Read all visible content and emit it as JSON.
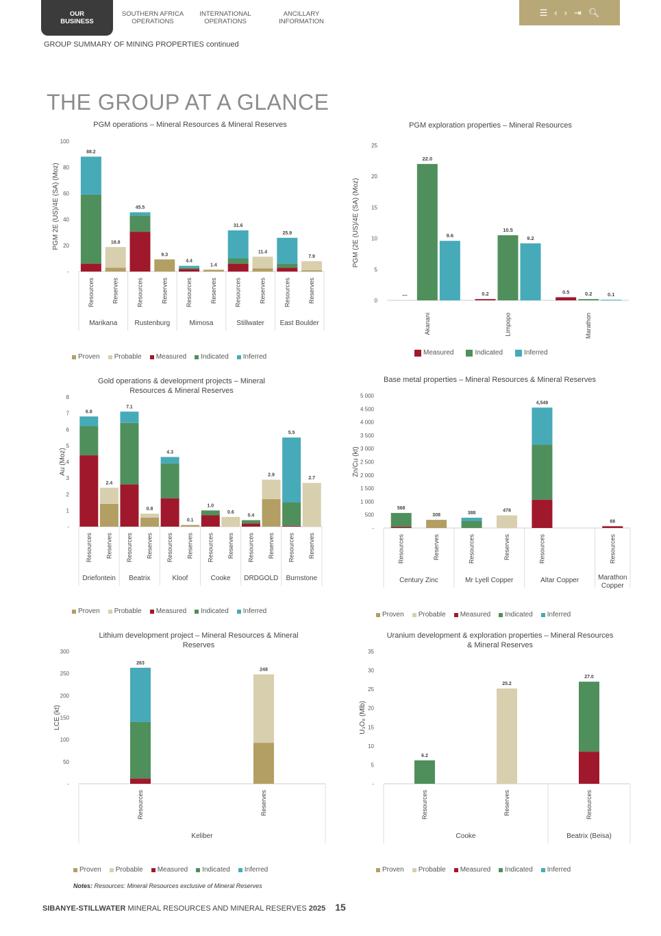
{
  "nav": {
    "tabs": [
      "OUR\nBUSINESS",
      "SOUTHERN AFRICA\nOPERATIONS",
      "INTERNATIONAL\nOPERATIONS",
      "ANCILLARY\nINFORMATION"
    ],
    "active_tab": 0,
    "icons": [
      "menu-icon",
      "chevron-left-icon",
      "chevron-right-icon",
      "exit-icon",
      "search-icon"
    ]
  },
  "section_label": "GROUP SUMMARY OF MINING PROPERTIES",
  "section_suffix": "continued",
  "page_title": "THE GROUP AT A GLANCE",
  "colors": {
    "proven": "#b39e63",
    "probable": "#d8cfae",
    "measured": "#a0182b",
    "indicated": "#4f8f5c",
    "inferred": "#46aab9",
    "nav": "#b8a877",
    "tab": "#3b3b3b"
  },
  "legend5": [
    {
      "key": "proven",
      "label": "Proven"
    },
    {
      "key": "probable",
      "label": "Probable"
    },
    {
      "key": "measured",
      "label": "Measured"
    },
    {
      "key": "indicated",
      "label": "Indicated"
    },
    {
      "key": "inferred",
      "label": "Inferred"
    }
  ],
  "legend3": [
    {
      "key": "measured",
      "label": "Measured"
    },
    {
      "key": "indicated",
      "label": "Indicated"
    },
    {
      "key": "inferred",
      "label": "Inferred"
    }
  ],
  "chart_data": [
    {
      "id": "c1",
      "type": "bar",
      "stacked": true,
      "title": "PGM operations – Mineral Resources & Mineral Reserves",
      "ylabel": "PGM 2E (US)/4E (SA) (Moz)",
      "ylim": [
        0,
        100
      ],
      "yticks": [
        0,
        20,
        40,
        60,
        80,
        100
      ],
      "ytick_labels": [
        "-",
        "20",
        "40",
        "60",
        "80",
        "100"
      ],
      "groups": [
        {
          "name": "Marikana",
          "bars": [
            {
              "label": "Resources",
              "total": "88.2",
              "segments": {
                "measured": 6,
                "indicated": 53,
                "inferred": 29.2
              }
            },
            {
              "label": "Reserves",
              "total": "18.8",
              "segments": {
                "proven": 3,
                "probable": 15.8
              }
            }
          ]
        },
        {
          "name": "Rustenburg",
          "bars": [
            {
              "label": "Resources",
              "total": "45.5",
              "segments": {
                "measured": 30.5,
                "indicated": 12.5,
                "inferred": 2.5
              }
            },
            {
              "label": "Reserves",
              "total": "9.3",
              "segments": {
                "proven": 9.3
              }
            }
          ]
        },
        {
          "name": "Mimosa",
          "bars": [
            {
              "label": "Resources",
              "total": "4.4",
              "segments": {
                "measured": 2,
                "indicated": 0.8,
                "inferred": 1.6
              }
            },
            {
              "label": "Reserves",
              "total": "1.4",
              "segments": {
                "proven": 1.4
              }
            }
          ]
        },
        {
          "name": "Stillwater",
          "bars": [
            {
              "label": "Resources",
              "total": "31.6",
              "segments": {
                "measured": 6,
                "indicated": 4,
                "inferred": 21.6
              }
            },
            {
              "label": "Reserves",
              "total": "11.4",
              "segments": {
                "proven": 2.5,
                "probable": 8.9
              }
            }
          ]
        },
        {
          "name": "East Boulder",
          "bars": [
            {
              "label": "Resources",
              "total": "25.9",
              "segments": {
                "measured": 3,
                "indicated": 3,
                "inferred": 19.9
              }
            },
            {
              "label": "Reserves",
              "total": "7.9",
              "segments": {
                "proven": 1,
                "probable": 6.9
              }
            }
          ]
        }
      ]
    },
    {
      "id": "c2",
      "type": "bar",
      "stacked": false,
      "title": "PGM exploration properties – Mineral Resources",
      "ylabel": "PGM (2E (US)/4E (SA) (Moz)",
      "ylim": [
        0,
        25
      ],
      "yticks": [
        0,
        5,
        10,
        15,
        20,
        25
      ],
      "ytick_labels": [
        "0",
        "5",
        "10",
        "15",
        "20",
        "25"
      ],
      "groups": [
        {
          "name": "Akanani",
          "bars": [
            {
              "key": "measured",
              "value": 0,
              "label": "—"
            },
            {
              "key": "indicated",
              "value": 22.0,
              "label": "22.0"
            },
            {
              "key": "inferred",
              "value": 9.6,
              "label": "9.6"
            }
          ]
        },
        {
          "name": "Limpopo",
          "bars": [
            {
              "key": "measured",
              "value": 0.2,
              "label": "0.2"
            },
            {
              "key": "indicated",
              "value": 10.5,
              "label": "10.5"
            },
            {
              "key": "inferred",
              "value": 9.2,
              "label": "9.2"
            }
          ]
        },
        {
          "name": "Marathon",
          "bars": [
            {
              "key": "measured",
              "value": 0.5,
              "label": "0.5"
            },
            {
              "key": "indicated",
              "value": 0.2,
              "label": "0.2"
            },
            {
              "key": "inferred",
              "value": 0.1,
              "label": "0.1"
            }
          ]
        }
      ]
    },
    {
      "id": "c3",
      "type": "bar",
      "stacked": true,
      "title": "Gold operations & development projects – Mineral Resources & Mineral Reserves",
      "ylabel": "Au (Moz)",
      "ylim": [
        0,
        8
      ],
      "yticks": [
        0,
        1,
        2,
        3,
        4,
        5,
        6,
        7,
        8
      ],
      "ytick_labels": [
        "-",
        "1",
        "2",
        "3",
        "4",
        "5",
        "6",
        "7",
        "8"
      ],
      "groups": [
        {
          "name": "Driefontein",
          "bars": [
            {
              "label": "Resources",
              "total": "6.8",
              "segments": {
                "measured": 4.4,
                "indicated": 1.8,
                "inferred": 0.6
              }
            },
            {
              "label": "Reserves",
              "total": "2.4",
              "segments": {
                "proven": 1.4,
                "probable": 1.0
              }
            }
          ]
        },
        {
          "name": "Beatrix",
          "bars": [
            {
              "label": "Resources",
              "total": "7.1",
              "segments": {
                "measured": 2.6,
                "indicated": 3.8,
                "inferred": 0.7
              }
            },
            {
              "label": "Reserves",
              "total": "0.8",
              "segments": {
                "proven": 0.55,
                "probable": 0.25
              }
            }
          ]
        },
        {
          "name": "Kloof",
          "bars": [
            {
              "label": "Resources",
              "total": "4.3",
              "segments": {
                "measured": 1.75,
                "indicated": 2.15,
                "inferred": 0.4
              }
            },
            {
              "label": "Reserves",
              "total": "0.1",
              "segments": {
                "proven": 0.1
              }
            }
          ]
        },
        {
          "name": "Cooke",
          "bars": [
            {
              "label": "Resources",
              "total": "1.0",
              "segments": {
                "measured": 0.7,
                "indicated": 0.3
              }
            },
            {
              "label": "Reserves",
              "total": "0.6",
              "segments": {
                "probable": 0.6
              }
            }
          ]
        },
        {
          "name": "DRDGOLD",
          "bars": [
            {
              "label": "Resources",
              "total": "0.4",
              "segments": {
                "measured": 0.2,
                "indicated": 0.2
              }
            },
            {
              "label": "Reserves",
              "total": "2.9",
              "segments": {
                "proven": 1.7,
                "probable": 1.2
              }
            }
          ]
        },
        {
          "name": "Burnstone",
          "bars": [
            {
              "label": "Resources",
              "total": "5.5",
              "segments": {
                "measured": 0.05,
                "indicated": 1.45,
                "inferred": 4.0
              }
            },
            {
              "label": "Reserves",
              "total": "2.7",
              "segments": {
                "probable": 2.7
              }
            }
          ]
        }
      ]
    },
    {
      "id": "c4",
      "type": "bar",
      "stacked": true,
      "title": "Base metal properties – Mineral Resources & Mineral Reserves",
      "ylabel": "Zn/Cu (kt)",
      "ylim": [
        0,
        5000
      ],
      "yticks": [
        0,
        500,
        1000,
        1500,
        2000,
        2500,
        3000,
        3500,
        4000,
        4500,
        5000
      ],
      "ytick_labels": [
        "-",
        "500",
        "1 000",
        "1 500",
        "2 000",
        "2 500",
        "3 000",
        "3 500",
        "4 000",
        "4 500",
        "5 000"
      ],
      "groups": [
        {
          "name": "Century Zinc",
          "bars": [
            {
              "label": "Resources",
              "total": "568",
              "segments": {
                "measured": 40,
                "indicated": 528
              }
            },
            {
              "label": "Reserves",
              "total": "308",
              "segments": {
                "proven": 308
              }
            }
          ]
        },
        {
          "name": "Mr Lyell Copper",
          "bars": [
            {
              "label": "Resources",
              "total": "388",
              "segments": {
                "indicated": 270,
                "inferred": 118
              }
            },
            {
              "label": "Reserves",
              "total": "478",
              "segments": {
                "probable": 478
              }
            }
          ]
        },
        {
          "name": "Altar Copper",
          "bars": [
            {
              "label": "Resources",
              "total": "4,549",
              "segments": {
                "measured": 1070,
                "indicated": 2080,
                "inferred": 1399
              }
            }
          ]
        },
        {
          "name": "Marathon Copper",
          "bars": [
            {
              "label": "Resources",
              "total": "68",
              "segments": {
                "measured": 68
              }
            }
          ]
        }
      ]
    },
    {
      "id": "c5",
      "type": "bar",
      "stacked": true,
      "title": "Lithium development project – Mineral Resources & Mineral Reserves",
      "ylabel": "LCE (kt)",
      "ylim": [
        0,
        300
      ],
      "yticks": [
        0,
        50,
        100,
        150,
        200,
        250,
        300
      ],
      "ytick_labels": [
        "-",
        "50",
        "100",
        "150",
        "200",
        "250",
        "300"
      ],
      "groups": [
        {
          "name": "Keliber",
          "bars": [
            {
              "label": "Resources",
              "total": "263",
              "segments": {
                "measured": 12,
                "indicated": 128,
                "inferred": 123
              }
            },
            {
              "label": "Reserves",
              "total": "248",
              "segments": {
                "proven": 93,
                "probable": 155
              }
            }
          ]
        }
      ]
    },
    {
      "id": "c6",
      "type": "bar",
      "stacked": true,
      "title": "Uranium development & exploration properties – Mineral Resources & Mineral Reserves",
      "ylabel": "U₃O₈ (Mlb)",
      "ylim": [
        0,
        35
      ],
      "yticks": [
        0,
        5,
        10,
        15,
        20,
        25,
        30,
        35
      ],
      "ytick_labels": [
        "-",
        "5",
        "10",
        "15",
        "20",
        "25",
        "30",
        "35"
      ],
      "groups": [
        {
          "name": "Cooke",
          "bars": [
            {
              "label": "Resources",
              "total": "6.2",
              "segments": {
                "indicated": 6.2
              }
            },
            {
              "label": "Reserves",
              "total": "25.2",
              "segments": {
                "probable": 25.2
              }
            }
          ]
        },
        {
          "name": "Beatrix (Beisa)",
          "bars": [
            {
              "label": "Resources",
              "total": "27.0",
              "segments": {
                "measured": 8.5,
                "indicated": 18.5
              }
            }
          ]
        }
      ]
    }
  ],
  "notes_label": "Notes:",
  "notes_text": " Resources: Mineral Resources exclusive of Mineral Reserves",
  "footer": {
    "brand": "SIBANYE-STILLWATER",
    "text": " MINERAL RESOURCES AND MINERAL RESERVES ",
    "year": "2025",
    "page": "15"
  }
}
